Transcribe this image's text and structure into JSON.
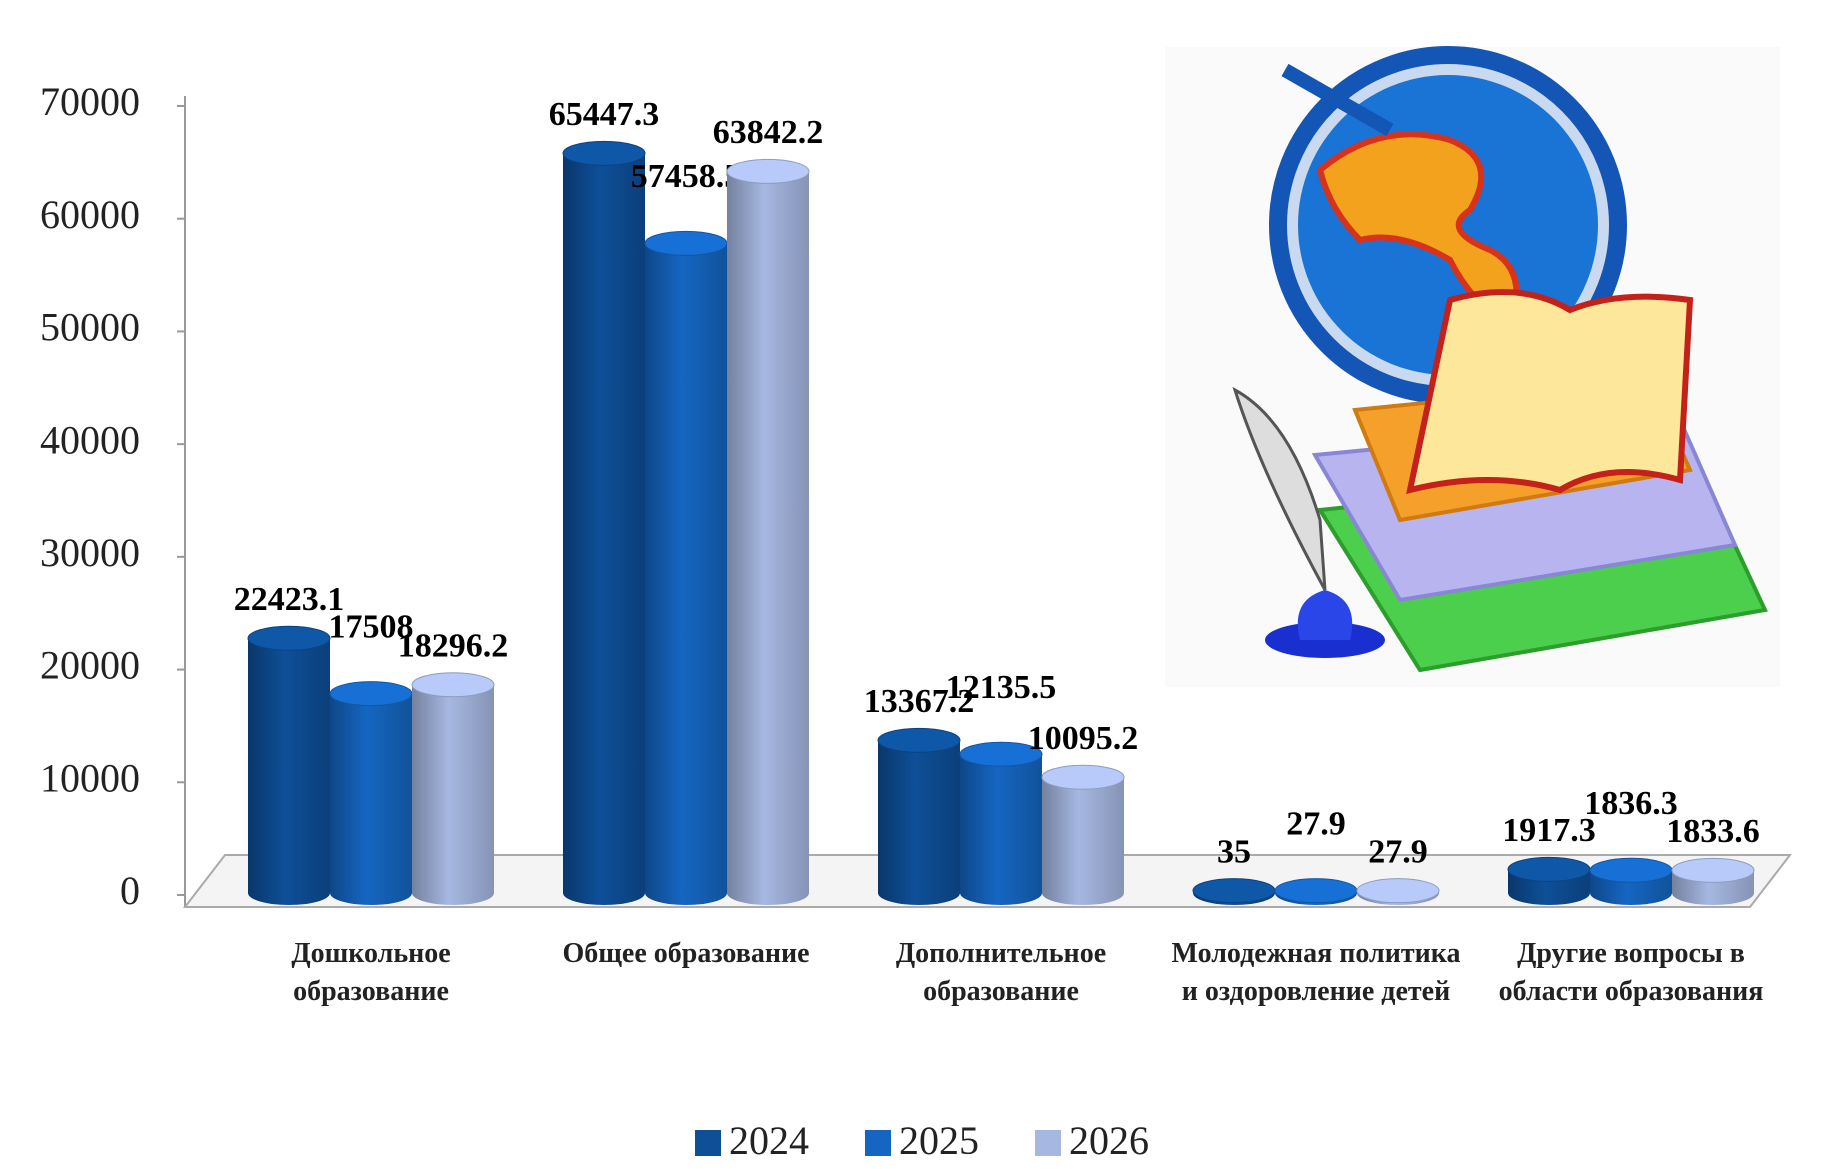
{
  "chart_data": {
    "type": "bar3d",
    "categories": [
      "Дошкольное образование",
      "Общее образование",
      "Дополнительное образование",
      "Молодежная политика и оздоровление детей",
      "Другие вопросы в области образования"
    ],
    "series": [
      {
        "name": "2024",
        "color": "#0e4f98",
        "values": [
          22423.1,
          65447.3,
          13367.2,
          35,
          1917.3
        ]
      },
      {
        "name": "2025",
        "color": "#1566c2",
        "values": [
          17508,
          57458.5,
          12135.5,
          27.9,
          1836.3
        ]
      },
      {
        "name": "2026",
        "color": "#a6b8e2",
        "values": [
          18296.2,
          63842.2,
          10095.2,
          27.9,
          1833.6
        ]
      }
    ],
    "ylim": [
      0,
      70000
    ],
    "yticks": [
      0,
      10000,
      20000,
      30000,
      40000,
      50000,
      60000,
      70000
    ],
    "legend": "bottom"
  }
}
